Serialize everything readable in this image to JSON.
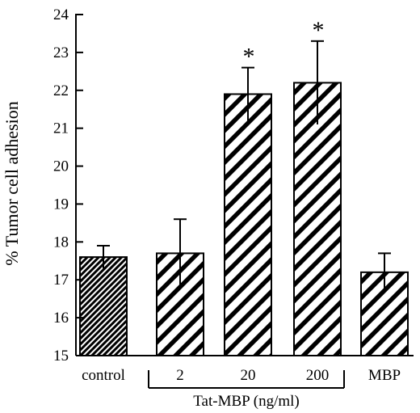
{
  "chart_data": {
    "type": "bar",
    "title": "",
    "xlabel": "",
    "ylabel": "% Tumor cell adhesion",
    "ylim": [
      15,
      24
    ],
    "yticks": [
      15,
      16,
      17,
      18,
      19,
      20,
      21,
      22,
      23,
      24
    ],
    "grid": false,
    "legend": "none",
    "categories": [
      "control",
      "2",
      "20",
      "200",
      "MBP"
    ],
    "values": [
      17.6,
      17.7,
      21.9,
      22.2,
      17.2
    ],
    "error": [
      0.3,
      0.9,
      0.7,
      1.1,
      0.5
    ],
    "significant": [
      false,
      false,
      true,
      true,
      false
    ],
    "significance_marker": "*",
    "fill_patterns": [
      "dense-hatch",
      "hatch",
      "hatch",
      "hatch",
      "hatch"
    ],
    "group_label": {
      "text": "Tat-MBP (ng/ml)",
      "categories": [
        "2",
        "20",
        "200"
      ]
    },
    "colors": {
      "ink": "#000000",
      "background": "#ffffff"
    }
  }
}
